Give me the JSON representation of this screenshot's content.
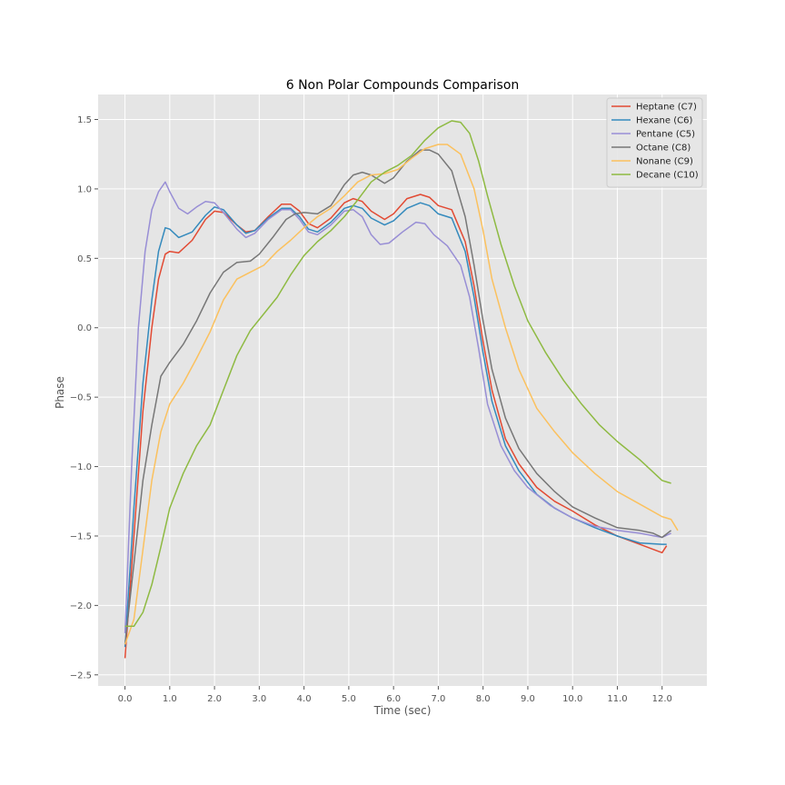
{
  "chart_data": {
    "type": "line",
    "title": "6 Non Polar Compounds Comparison",
    "xlabel": "Time (sec)",
    "ylabel": "Phase",
    "xlim": [
      -0.6,
      13.0
    ],
    "ylim": [
      -2.58,
      1.68
    ],
    "xticks": [
      0,
      1,
      2,
      3,
      4,
      5,
      6,
      7,
      8,
      9,
      10,
      11,
      12
    ],
    "xtick_labels": [
      "0.0",
      "1.0",
      "2.0",
      "3.0",
      "4.0",
      "5.0",
      "6.0",
      "7.0",
      "8.0",
      "9.0",
      "10.0",
      "11.0",
      "12.0"
    ],
    "yticks": [
      -2.5,
      -2.0,
      -1.5,
      -1.0,
      -0.5,
      0.0,
      0.5,
      1.0,
      1.5
    ],
    "ytick_labels": [
      "−2.5",
      "−2.0",
      "−1.5",
      "−1.0",
      "−0.5",
      "0.0",
      "0.5",
      "1.0",
      "1.5"
    ],
    "grid": true,
    "legend_position": "top-right",
    "series": [
      {
        "name": "Heptane (C7)",
        "color": "#E24A33",
        "points": [
          [
            0,
            -2.38
          ],
          [
            0.2,
            -1.5
          ],
          [
            0.4,
            -0.6
          ],
          [
            0.6,
            0.0
          ],
          [
            0.75,
            0.35
          ],
          [
            0.9,
            0.53
          ],
          [
            1.0,
            0.55
          ],
          [
            1.2,
            0.54
          ],
          [
            1.5,
            0.63
          ],
          [
            1.8,
            0.78
          ],
          [
            2.0,
            0.84
          ],
          [
            2.2,
            0.83
          ],
          [
            2.5,
            0.74
          ],
          [
            2.7,
            0.69
          ],
          [
            2.9,
            0.7
          ],
          [
            3.2,
            0.8
          ],
          [
            3.5,
            0.89
          ],
          [
            3.7,
            0.89
          ],
          [
            3.9,
            0.84
          ],
          [
            4.1,
            0.75
          ],
          [
            4.3,
            0.72
          ],
          [
            4.6,
            0.79
          ],
          [
            4.9,
            0.9
          ],
          [
            5.1,
            0.93
          ],
          [
            5.3,
            0.91
          ],
          [
            5.5,
            0.84
          ],
          [
            5.8,
            0.78
          ],
          [
            6.0,
            0.82
          ],
          [
            6.3,
            0.93
          ],
          [
            6.6,
            0.96
          ],
          [
            6.8,
            0.94
          ],
          [
            7.0,
            0.88
          ],
          [
            7.3,
            0.85
          ],
          [
            7.6,
            0.62
          ],
          [
            7.8,
            0.3
          ],
          [
            8.0,
            -0.1
          ],
          [
            8.2,
            -0.45
          ],
          [
            8.5,
            -0.8
          ],
          [
            8.8,
            -0.98
          ],
          [
            9.2,
            -1.15
          ],
          [
            9.6,
            -1.25
          ],
          [
            10.0,
            -1.32
          ],
          [
            10.5,
            -1.42
          ],
          [
            11.0,
            -1.5
          ],
          [
            11.5,
            -1.56
          ],
          [
            12.0,
            -1.62
          ],
          [
            12.1,
            -1.57
          ]
        ]
      },
      {
        "name": "Hexane (C6)",
        "color": "#348ABD",
        "points": [
          [
            0,
            -2.3
          ],
          [
            0.2,
            -1.3
          ],
          [
            0.4,
            -0.4
          ],
          [
            0.6,
            0.2
          ],
          [
            0.75,
            0.55
          ],
          [
            0.9,
            0.72
          ],
          [
            1.0,
            0.71
          ],
          [
            1.2,
            0.65
          ],
          [
            1.5,
            0.69
          ],
          [
            1.8,
            0.81
          ],
          [
            2.0,
            0.87
          ],
          [
            2.2,
            0.85
          ],
          [
            2.5,
            0.74
          ],
          [
            2.7,
            0.68
          ],
          [
            2.9,
            0.7
          ],
          [
            3.2,
            0.79
          ],
          [
            3.5,
            0.86
          ],
          [
            3.7,
            0.86
          ],
          [
            3.9,
            0.8
          ],
          [
            4.1,
            0.71
          ],
          [
            4.3,
            0.69
          ],
          [
            4.6,
            0.76
          ],
          [
            4.9,
            0.86
          ],
          [
            5.1,
            0.88
          ],
          [
            5.3,
            0.86
          ],
          [
            5.5,
            0.79
          ],
          [
            5.8,
            0.74
          ],
          [
            6.0,
            0.77
          ],
          [
            6.3,
            0.86
          ],
          [
            6.6,
            0.9
          ],
          [
            6.8,
            0.88
          ],
          [
            7.0,
            0.82
          ],
          [
            7.3,
            0.79
          ],
          [
            7.6,
            0.55
          ],
          [
            7.8,
            0.22
          ],
          [
            8.0,
            -0.18
          ],
          [
            8.2,
            -0.53
          ],
          [
            8.5,
            -0.85
          ],
          [
            8.8,
            -1.03
          ],
          [
            9.2,
            -1.2
          ],
          [
            9.6,
            -1.3
          ],
          [
            10.0,
            -1.37
          ],
          [
            10.5,
            -1.44
          ],
          [
            11.0,
            -1.5
          ],
          [
            11.5,
            -1.55
          ],
          [
            12.0,
            -1.56
          ],
          [
            12.1,
            -1.56
          ]
        ]
      },
      {
        "name": "Pentane (C5)",
        "color": "#988ED5",
        "points": [
          [
            0,
            -2.2
          ],
          [
            0.15,
            -1.0
          ],
          [
            0.3,
            0.0
          ],
          [
            0.45,
            0.55
          ],
          [
            0.6,
            0.85
          ],
          [
            0.75,
            0.98
          ],
          [
            0.9,
            1.05
          ],
          [
            1.0,
            0.98
          ],
          [
            1.2,
            0.86
          ],
          [
            1.4,
            0.82
          ],
          [
            1.6,
            0.87
          ],
          [
            1.8,
            0.91
          ],
          [
            2.0,
            0.9
          ],
          [
            2.2,
            0.83
          ],
          [
            2.5,
            0.71
          ],
          [
            2.7,
            0.65
          ],
          [
            2.9,
            0.68
          ],
          [
            3.2,
            0.78
          ],
          [
            3.5,
            0.85
          ],
          [
            3.7,
            0.85
          ],
          [
            3.9,
            0.78
          ],
          [
            4.1,
            0.69
          ],
          [
            4.3,
            0.67
          ],
          [
            4.6,
            0.74
          ],
          [
            4.9,
            0.84
          ],
          [
            5.1,
            0.85
          ],
          [
            5.3,
            0.8
          ],
          [
            5.5,
            0.67
          ],
          [
            5.7,
            0.6
          ],
          [
            5.9,
            0.61
          ],
          [
            6.2,
            0.69
          ],
          [
            6.5,
            0.76
          ],
          [
            6.7,
            0.75
          ],
          [
            6.9,
            0.67
          ],
          [
            7.2,
            0.59
          ],
          [
            7.5,
            0.45
          ],
          [
            7.7,
            0.22
          ],
          [
            7.9,
            -0.15
          ],
          [
            8.1,
            -0.55
          ],
          [
            8.4,
            -0.85
          ],
          [
            8.7,
            -1.03
          ],
          [
            9.0,
            -1.15
          ],
          [
            9.5,
            -1.28
          ],
          [
            10.0,
            -1.37
          ],
          [
            10.5,
            -1.43
          ],
          [
            11.0,
            -1.46
          ],
          [
            11.5,
            -1.48
          ],
          [
            12.0,
            -1.51
          ],
          [
            12.2,
            -1.48
          ]
        ]
      },
      {
        "name": "Octane (C8)",
        "color": "#777777",
        "points": [
          [
            0,
            -2.28
          ],
          [
            0.2,
            -1.7
          ],
          [
            0.4,
            -1.1
          ],
          [
            0.6,
            -0.7
          ],
          [
            0.8,
            -0.35
          ],
          [
            1.0,
            -0.25
          ],
          [
            1.3,
            -0.12
          ],
          [
            1.6,
            0.05
          ],
          [
            1.9,
            0.25
          ],
          [
            2.2,
            0.4
          ],
          [
            2.5,
            0.47
          ],
          [
            2.8,
            0.48
          ],
          [
            3.0,
            0.53
          ],
          [
            3.3,
            0.65
          ],
          [
            3.6,
            0.78
          ],
          [
            3.8,
            0.82
          ],
          [
            4.0,
            0.83
          ],
          [
            4.3,
            0.82
          ],
          [
            4.6,
            0.88
          ],
          [
            4.9,
            1.03
          ],
          [
            5.1,
            1.1
          ],
          [
            5.3,
            1.12
          ],
          [
            5.5,
            1.1
          ],
          [
            5.8,
            1.04
          ],
          [
            6.0,
            1.08
          ],
          [
            6.3,
            1.2
          ],
          [
            6.6,
            1.28
          ],
          [
            6.8,
            1.28
          ],
          [
            7.0,
            1.25
          ],
          [
            7.3,
            1.13
          ],
          [
            7.6,
            0.8
          ],
          [
            7.8,
            0.45
          ],
          [
            8.0,
            0.05
          ],
          [
            8.2,
            -0.3
          ],
          [
            8.5,
            -0.65
          ],
          [
            8.8,
            -0.87
          ],
          [
            9.2,
            -1.05
          ],
          [
            9.6,
            -1.18
          ],
          [
            10.0,
            -1.29
          ],
          [
            10.5,
            -1.37
          ],
          [
            11.0,
            -1.44
          ],
          [
            11.5,
            -1.46
          ],
          [
            11.8,
            -1.48
          ],
          [
            12.0,
            -1.51
          ],
          [
            12.2,
            -1.46
          ]
        ]
      },
      {
        "name": "Nonane (C9)",
        "color": "#FBC15E",
        "points": [
          [
            0,
            -2.28
          ],
          [
            0.2,
            -2.1
          ],
          [
            0.4,
            -1.6
          ],
          [
            0.6,
            -1.1
          ],
          [
            0.8,
            -0.75
          ],
          [
            1.0,
            -0.55
          ],
          [
            1.3,
            -0.4
          ],
          [
            1.6,
            -0.22
          ],
          [
            1.9,
            -0.03
          ],
          [
            2.2,
            0.2
          ],
          [
            2.5,
            0.35
          ],
          [
            2.8,
            0.4
          ],
          [
            3.1,
            0.45
          ],
          [
            3.4,
            0.55
          ],
          [
            3.7,
            0.63
          ],
          [
            4.0,
            0.72
          ],
          [
            4.3,
            0.8
          ],
          [
            4.6,
            0.86
          ],
          [
            4.9,
            0.95
          ],
          [
            5.2,
            1.05
          ],
          [
            5.5,
            1.1
          ],
          [
            5.8,
            1.11
          ],
          [
            6.1,
            1.14
          ],
          [
            6.4,
            1.22
          ],
          [
            6.7,
            1.29
          ],
          [
            7.0,
            1.32
          ],
          [
            7.2,
            1.32
          ],
          [
            7.5,
            1.25
          ],
          [
            7.8,
            1.0
          ],
          [
            8.0,
            0.7
          ],
          [
            8.2,
            0.35
          ],
          [
            8.5,
            0.0
          ],
          [
            8.8,
            -0.3
          ],
          [
            9.2,
            -0.58
          ],
          [
            9.6,
            -0.75
          ],
          [
            10.0,
            -0.9
          ],
          [
            10.5,
            -1.05
          ],
          [
            11.0,
            -1.18
          ],
          [
            11.5,
            -1.27
          ],
          [
            12.0,
            -1.36
          ],
          [
            12.2,
            -1.38
          ],
          [
            12.35,
            -1.46
          ]
        ]
      },
      {
        "name": "Decane (C10)",
        "color": "#8EBA42",
        "points": [
          [
            0,
            -2.15
          ],
          [
            0.2,
            -2.15
          ],
          [
            0.4,
            -2.05
          ],
          [
            0.6,
            -1.85
          ],
          [
            0.8,
            -1.58
          ],
          [
            1.0,
            -1.3
          ],
          [
            1.3,
            -1.05
          ],
          [
            1.6,
            -0.85
          ],
          [
            1.9,
            -0.7
          ],
          [
            2.2,
            -0.45
          ],
          [
            2.5,
            -0.2
          ],
          [
            2.8,
            -0.02
          ],
          [
            3.1,
            0.1
          ],
          [
            3.4,
            0.22
          ],
          [
            3.7,
            0.38
          ],
          [
            4.0,
            0.52
          ],
          [
            4.3,
            0.62
          ],
          [
            4.6,
            0.7
          ],
          [
            4.9,
            0.8
          ],
          [
            5.2,
            0.92
          ],
          [
            5.5,
            1.05
          ],
          [
            5.8,
            1.12
          ],
          [
            6.1,
            1.17
          ],
          [
            6.4,
            1.24
          ],
          [
            6.7,
            1.35
          ],
          [
            7.0,
            1.44
          ],
          [
            7.3,
            1.49
          ],
          [
            7.5,
            1.48
          ],
          [
            7.7,
            1.4
          ],
          [
            7.9,
            1.2
          ],
          [
            8.1,
            0.95
          ],
          [
            8.4,
            0.6
          ],
          [
            8.7,
            0.3
          ],
          [
            9.0,
            0.05
          ],
          [
            9.4,
            -0.18
          ],
          [
            9.8,
            -0.38
          ],
          [
            10.2,
            -0.55
          ],
          [
            10.6,
            -0.7
          ],
          [
            11.0,
            -0.82
          ],
          [
            11.5,
            -0.95
          ],
          [
            12.0,
            -1.1
          ],
          [
            12.1,
            -1.11
          ],
          [
            12.2,
            -1.12
          ]
        ]
      }
    ]
  }
}
